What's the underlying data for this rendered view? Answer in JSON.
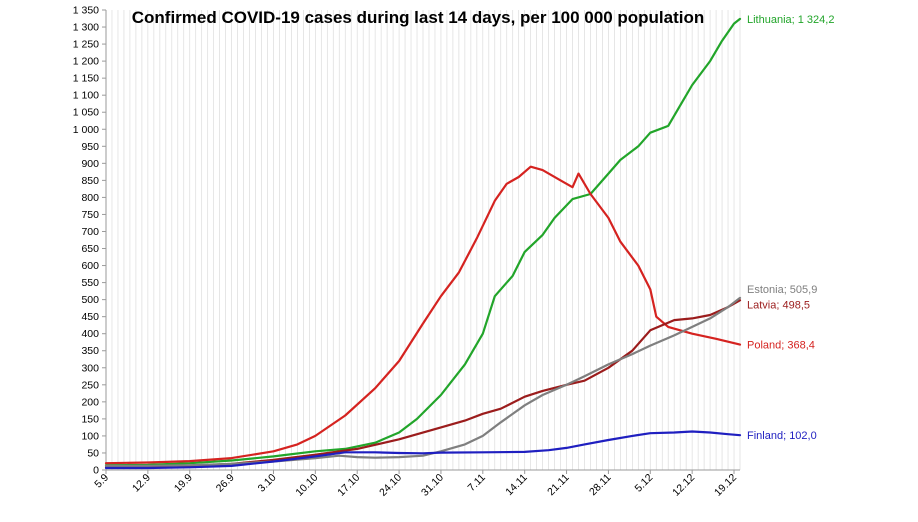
{
  "chart_data": {
    "type": "line",
    "title": "Confirmed COVID-19 cases during last 14 days, per 100 000 population",
    "xlabel": "",
    "ylabel": "",
    "ylim": [
      0,
      1350
    ],
    "y_ticks": [
      0,
      50,
      100,
      150,
      200,
      250,
      300,
      350,
      400,
      450,
      500,
      550,
      600,
      650,
      700,
      750,
      800,
      850,
      900,
      950,
      1000,
      1050,
      1100,
      1150,
      1200,
      1250,
      1300,
      1350
    ],
    "y_tick_labels": [
      "0",
      "50",
      "100",
      "150",
      "200",
      "250",
      "300",
      "350",
      "400",
      "450",
      "500",
      "550",
      "600",
      "650",
      "700",
      "750",
      "800",
      "850",
      "900",
      "950",
      "1 000",
      "1 050",
      "1 100",
      "1 150",
      "1 200",
      "1 250",
      "1 300",
      "1 350"
    ],
    "x_ticks": [
      {
        "day": 0,
        "label": "5.9"
      },
      {
        "day": 7,
        "label": "12.9"
      },
      {
        "day": 14,
        "label": "19.9"
      },
      {
        "day": 21,
        "label": "26.9"
      },
      {
        "day": 28,
        "label": "3.10"
      },
      {
        "day": 35,
        "label": "10.10"
      },
      {
        "day": 42,
        "label": "17.10"
      },
      {
        "day": 49,
        "label": "24.10"
      },
      {
        "day": 56,
        "label": "31.10"
      },
      {
        "day": 63,
        "label": "7.11"
      },
      {
        "day": 70,
        "label": "14.11"
      },
      {
        "day": 77,
        "label": "21.11"
      },
      {
        "day": 84,
        "label": "28.11"
      },
      {
        "day": 91,
        "label": "5.12"
      },
      {
        "day": 98,
        "label": "12.12"
      },
      {
        "day": 105,
        "label": "19.12"
      }
    ],
    "x_range": [
      0,
      106
    ],
    "grid": "vertical",
    "series": [
      {
        "name": "Lithuania",
        "label": "Lithuania; 1 324,2",
        "color": "#22a52a",
        "points": [
          [
            0,
            14
          ],
          [
            7,
            15
          ],
          [
            14,
            20
          ],
          [
            21,
            28
          ],
          [
            28,
            40
          ],
          [
            35,
            55
          ],
          [
            40,
            62
          ],
          [
            45,
            80
          ],
          [
            49,
            110
          ],
          [
            52,
            150
          ],
          [
            56,
            220
          ],
          [
            60,
            310
          ],
          [
            63,
            400
          ],
          [
            65,
            510
          ],
          [
            68,
            570
          ],
          [
            70,
            640
          ],
          [
            73,
            690
          ],
          [
            75,
            740
          ],
          [
            78,
            795
          ],
          [
            81,
            810
          ],
          [
            84,
            870
          ],
          [
            86,
            910
          ],
          [
            89,
            950
          ],
          [
            91,
            990
          ],
          [
            94,
            1010
          ],
          [
            96,
            1070
          ],
          [
            98,
            1130
          ],
          [
            101,
            1200
          ],
          [
            103,
            1260
          ],
          [
            105,
            1310
          ],
          [
            106,
            1324
          ]
        ]
      },
      {
        "name": "Poland",
        "label": "Poland; 368,4",
        "color": "#d52320",
        "points": [
          [
            0,
            20
          ],
          [
            7,
            22
          ],
          [
            14,
            26
          ],
          [
            21,
            35
          ],
          [
            28,
            55
          ],
          [
            32,
            75
          ],
          [
            35,
            100
          ],
          [
            40,
            160
          ],
          [
            45,
            240
          ],
          [
            49,
            320
          ],
          [
            53,
            430
          ],
          [
            56,
            510
          ],
          [
            59,
            580
          ],
          [
            62,
            680
          ],
          [
            65,
            790
          ],
          [
            67,
            840
          ],
          [
            69,
            860
          ],
          [
            71,
            890
          ],
          [
            73,
            880
          ],
          [
            76,
            850
          ],
          [
            78,
            830
          ],
          [
            79,
            870
          ],
          [
            81,
            810
          ],
          [
            84,
            740
          ],
          [
            86,
            670
          ],
          [
            89,
            600
          ],
          [
            91,
            530
          ],
          [
            92,
            450
          ],
          [
            94,
            420
          ],
          [
            98,
            400
          ],
          [
            102,
            385
          ],
          [
            106,
            368
          ]
        ]
      },
      {
        "name": "Latvia",
        "label": "Latvia; 498,5",
        "color": "#9b1c1c",
        "points": [
          [
            0,
            8
          ],
          [
            7,
            9
          ],
          [
            14,
            12
          ],
          [
            21,
            18
          ],
          [
            28,
            30
          ],
          [
            35,
            45
          ],
          [
            42,
            62
          ],
          [
            49,
            90
          ],
          [
            56,
            125
          ],
          [
            60,
            145
          ],
          [
            63,
            165
          ],
          [
            66,
            180
          ],
          [
            70,
            215
          ],
          [
            73,
            232
          ],
          [
            77,
            250
          ],
          [
            80,
            262
          ],
          [
            84,
            300
          ],
          [
            88,
            350
          ],
          [
            91,
            410
          ],
          [
            95,
            440
          ],
          [
            98,
            445
          ],
          [
            101,
            455
          ],
          [
            104,
            478
          ],
          [
            106,
            498
          ]
        ]
      },
      {
        "name": "Estonia",
        "label": "Estonia; 505,9",
        "color": "#7f7f7f",
        "points": [
          [
            0,
            12
          ],
          [
            7,
            12
          ],
          [
            14,
            14
          ],
          [
            21,
            18
          ],
          [
            28,
            25
          ],
          [
            35,
            35
          ],
          [
            39,
            42
          ],
          [
            42,
            38
          ],
          [
            45,
            36
          ],
          [
            49,
            38
          ],
          [
            53,
            42
          ],
          [
            56,
            55
          ],
          [
            60,
            75
          ],
          [
            63,
            100
          ],
          [
            66,
            140
          ],
          [
            70,
            190
          ],
          [
            73,
            220
          ],
          [
            77,
            250
          ],
          [
            80,
            275
          ],
          [
            84,
            310
          ],
          [
            88,
            340
          ],
          [
            91,
            365
          ],
          [
            95,
            395
          ],
          [
            98,
            420
          ],
          [
            101,
            445
          ],
          [
            104,
            478
          ],
          [
            106,
            505
          ]
        ]
      },
      {
        "name": "Finland",
        "label": "Finland; 102,0",
        "color": "#1f1fc0",
        "points": [
          [
            0,
            6
          ],
          [
            7,
            6
          ],
          [
            14,
            8
          ],
          [
            21,
            12
          ],
          [
            28,
            25
          ],
          [
            35,
            40
          ],
          [
            40,
            52
          ],
          [
            45,
            52
          ],
          [
            49,
            50
          ],
          [
            53,
            49
          ],
          [
            56,
            51
          ],
          [
            63,
            52
          ],
          [
            70,
            53
          ],
          [
            74,
            58
          ],
          [
            77,
            65
          ],
          [
            80,
            75
          ],
          [
            84,
            88
          ],
          [
            88,
            100
          ],
          [
            91,
            108
          ],
          [
            95,
            110
          ],
          [
            98,
            113
          ],
          [
            101,
            110
          ],
          [
            104,
            105
          ],
          [
            106,
            102
          ]
        ]
      }
    ]
  }
}
